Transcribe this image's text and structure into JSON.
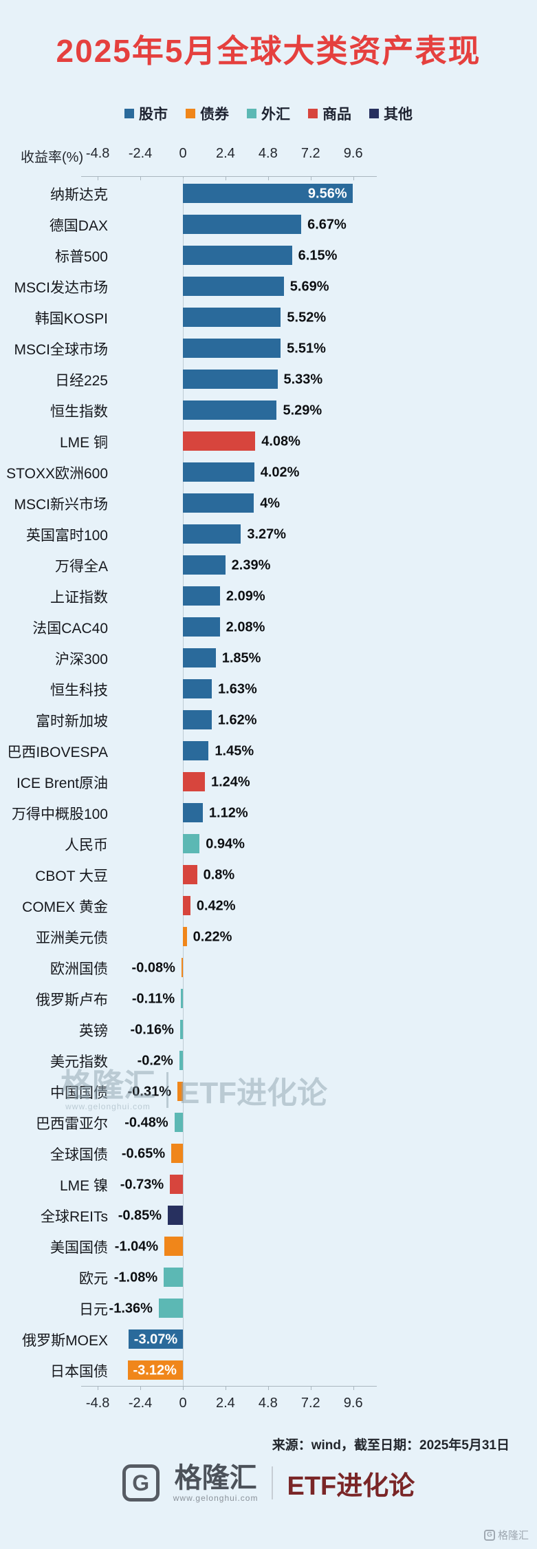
{
  "title": "2025年5月全球大类资产表现",
  "legend": {
    "items": [
      {
        "key": "stock",
        "label": "股市",
        "color": "#2a6a9b"
      },
      {
        "key": "bond",
        "label": "债券",
        "color": "#f0861a"
      },
      {
        "key": "forex",
        "label": "外汇",
        "color": "#5cb8b4"
      },
      {
        "key": "commodity",
        "label": "商品",
        "color": "#d7453d"
      },
      {
        "key": "other",
        "label": "其他",
        "color": "#27305f"
      }
    ]
  },
  "chart_data": {
    "type": "bar",
    "orientation": "horizontal",
    "title": "2025年5月全球大类资产表现",
    "xlabel": "收益率(%)",
    "ylabel": "",
    "xlim": [
      -6,
      11
    ],
    "grid": false,
    "legend_position": "top",
    "x_ticks": [
      -4.8,
      -2.4,
      0,
      2.4,
      4.8,
      7.2,
      9.6
    ],
    "x_tick_labels": [
      "-4.8",
      "-2.4",
      "0",
      "2.4",
      "4.8",
      "7.2",
      "9.6"
    ],
    "bars": [
      {
        "name": "纳斯达克",
        "value": 9.56,
        "label": "9.56%",
        "cat": "stock",
        "inside": true
      },
      {
        "name": "德国DAX",
        "value": 6.67,
        "label": "6.67%",
        "cat": "stock"
      },
      {
        "name": "标普500",
        "value": 6.15,
        "label": "6.15%",
        "cat": "stock"
      },
      {
        "name": "MSCI发达市场",
        "value": 5.69,
        "label": "5.69%",
        "cat": "stock"
      },
      {
        "name": "韩国KOSPI",
        "value": 5.52,
        "label": "5.52%",
        "cat": "stock"
      },
      {
        "name": "MSCI全球市场",
        "value": 5.51,
        "label": "5.51%",
        "cat": "stock"
      },
      {
        "name": "日经225",
        "value": 5.33,
        "label": "5.33%",
        "cat": "stock"
      },
      {
        "name": "恒生指数",
        "value": 5.29,
        "label": "5.29%",
        "cat": "stock"
      },
      {
        "name": "LME 铜",
        "value": 4.08,
        "label": "4.08%",
        "cat": "commodity"
      },
      {
        "name": "STOXX欧洲600",
        "value": 4.02,
        "label": "4.02%",
        "cat": "stock"
      },
      {
        "name": "MSCI新兴市场",
        "value": 4,
        "label": "4%",
        "cat": "stock"
      },
      {
        "name": "英国富时100",
        "value": 3.27,
        "label": "3.27%",
        "cat": "stock"
      },
      {
        "name": "万得全A",
        "value": 2.39,
        "label": "2.39%",
        "cat": "stock"
      },
      {
        "name": "上证指数",
        "value": 2.09,
        "label": "2.09%",
        "cat": "stock"
      },
      {
        "name": "法国CAC40",
        "value": 2.08,
        "label": "2.08%",
        "cat": "stock"
      },
      {
        "name": "沪深300",
        "value": 1.85,
        "label": "1.85%",
        "cat": "stock"
      },
      {
        "name": "恒生科技",
        "value": 1.63,
        "label": "1.63%",
        "cat": "stock"
      },
      {
        "name": "富时新加坡",
        "value": 1.62,
        "label": "1.62%",
        "cat": "stock"
      },
      {
        "name": "巴西IBOVESPA",
        "value": 1.45,
        "label": "1.45%",
        "cat": "stock"
      },
      {
        "name": "ICE Brent原油",
        "value": 1.24,
        "label": "1.24%",
        "cat": "commodity"
      },
      {
        "name": "万得中概股100",
        "value": 1.12,
        "label": "1.12%",
        "cat": "stock"
      },
      {
        "name": "人民币",
        "value": 0.94,
        "label": "0.94%",
        "cat": "forex"
      },
      {
        "name": "CBOT 大豆",
        "value": 0.8,
        "label": "0.8%",
        "cat": "commodity"
      },
      {
        "name": "COMEX 黄金",
        "value": 0.42,
        "label": "0.42%",
        "cat": "commodity"
      },
      {
        "name": "亚洲美元债",
        "value": 0.22,
        "label": "0.22%",
        "cat": "bond"
      },
      {
        "name": "欧洲国债",
        "value": -0.08,
        "label": "-0.08%",
        "cat": "bond"
      },
      {
        "name": "俄罗斯卢布",
        "value": -0.11,
        "label": "-0.11%",
        "cat": "forex"
      },
      {
        "name": "英镑",
        "value": -0.16,
        "label": "-0.16%",
        "cat": "forex"
      },
      {
        "name": "美元指数",
        "value": -0.2,
        "label": "-0.2%",
        "cat": "forex"
      },
      {
        "name": "中国国债",
        "value": -0.31,
        "label": "-0.31%",
        "cat": "bond"
      },
      {
        "name": "巴西雷亚尔",
        "value": -0.48,
        "label": "-0.48%",
        "cat": "forex"
      },
      {
        "name": "全球国债",
        "value": -0.65,
        "label": "-0.65%",
        "cat": "bond"
      },
      {
        "name": "LME 镍",
        "value": -0.73,
        "label": "-0.73%",
        "cat": "commodity"
      },
      {
        "name": "全球REITs",
        "value": -0.85,
        "label": "-0.85%",
        "cat": "other"
      },
      {
        "name": "美国国债",
        "value": -1.04,
        "label": "-1.04%",
        "cat": "bond"
      },
      {
        "name": "欧元",
        "value": -1.08,
        "label": "-1.08%",
        "cat": "forex"
      },
      {
        "name": "日元",
        "value": -1.36,
        "label": "-1.36%",
        "cat": "forex"
      },
      {
        "name": "俄罗斯MOEX",
        "value": -3.07,
        "label": "-3.07%",
        "cat": "stock",
        "inside": true
      },
      {
        "name": "日本国债",
        "value": -3.12,
        "label": "-3.12%",
        "cat": "bond",
        "inside": true
      }
    ]
  },
  "watermark": {
    "brand": "格隆汇",
    "url": "www.gelonghui.com",
    "name": "ETF进化论"
  },
  "source": "来源：wind，截至日期：2025年5月31日",
  "footer": {
    "logo_letter": "G",
    "brand": "格隆汇",
    "url": "www.gelonghui.com",
    "name": "ETF进化论"
  },
  "corner": {
    "logo": "G",
    "text": "格隆汇"
  }
}
